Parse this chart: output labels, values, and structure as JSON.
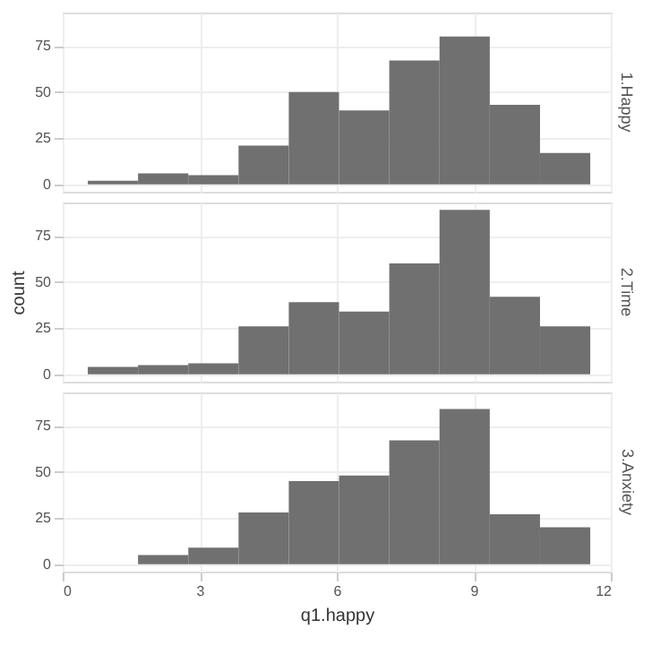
{
  "chart_data": [
    {
      "type": "histogram",
      "title": "1.Happy",
      "bins": [
        0.55,
        1.65,
        2.75,
        3.85,
        4.95,
        6.05,
        7.15,
        8.25,
        9.35,
        10.45,
        11.55
      ],
      "values": [
        2,
        6,
        5,
        21,
        50,
        40,
        67,
        80,
        43,
        17
      ],
      "color": "#707070",
      "xlim": [
        0,
        12
      ],
      "xticks": [
        0,
        3,
        6,
        9,
        12
      ],
      "ylim": [
        -4,
        93
      ],
      "yticks": [
        0,
        25,
        50,
        75
      ],
      "grid": true,
      "tick_labels": "y"
    },
    {
      "type": "histogram",
      "title": "2.Time",
      "ylabel": "count",
      "bins": [
        0.55,
        1.65,
        2.75,
        3.85,
        4.95,
        6.05,
        7.15,
        8.25,
        9.35,
        10.45,
        11.55
      ],
      "values": [
        4,
        5,
        6,
        26,
        39,
        34,
        60,
        89,
        42,
        26
      ],
      "color": "#707070",
      "xlim": [
        0,
        12
      ],
      "xticks": [
        0,
        3,
        6,
        9,
        12
      ],
      "ylim": [
        -4,
        93
      ],
      "yticks": [
        0,
        25,
        50,
        75
      ],
      "grid": true,
      "tick_labels": "y"
    },
    {
      "type": "histogram",
      "title": "3.Anxiety",
      "xlabel": "q1.happy",
      "bins": [
        0.55,
        1.65,
        2.75,
        3.85,
        4.95,
        6.05,
        7.15,
        8.25,
        9.35,
        10.45,
        11.55
      ],
      "values": [
        0,
        5,
        9,
        28,
        45,
        48,
        67,
        84,
        27,
        20
      ],
      "color": "#707070",
      "xlim": [
        0,
        12
      ],
      "xticks": [
        0,
        3,
        6,
        9,
        12
      ],
      "ylim": [
        -4,
        93
      ],
      "yticks": [
        0,
        25,
        50,
        75
      ],
      "grid": true
    }
  ]
}
